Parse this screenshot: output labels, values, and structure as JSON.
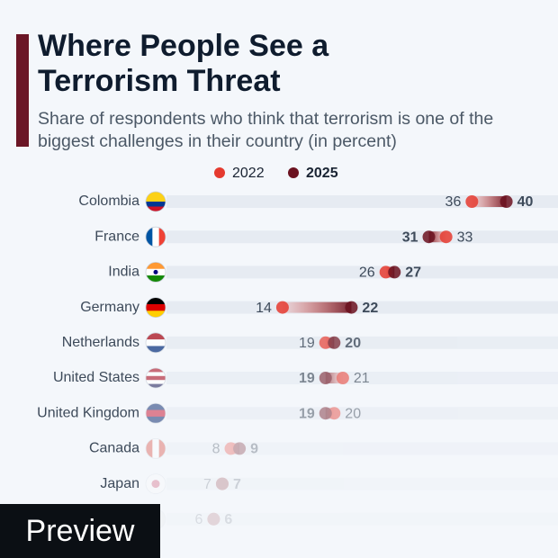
{
  "chart_data": {
    "type": "dumbbell",
    "title": "Where People See a Terrorism Threat",
    "subtitle": "Share of respondents who think that terrorism is one of the biggest challenges in their country (in percent)",
    "categories": [
      "Colombia",
      "France",
      "India",
      "Germany",
      "Netherlands",
      "United States",
      "United Kingdom",
      "Canada",
      "Japan",
      null
    ],
    "series": [
      {
        "name": "2022",
        "color": "#e53a2f",
        "values": [
          36,
          33,
          26,
          14,
          19,
          21,
          20,
          8,
          7,
          6
        ]
      },
      {
        "name": "2025",
        "color": "#6b1220",
        "values": [
          40,
          31,
          27,
          22,
          20,
          19,
          19,
          9,
          7,
          6
        ]
      }
    ],
    "xlim": [
      0,
      46
    ]
  },
  "preview_badge": "Preview"
}
